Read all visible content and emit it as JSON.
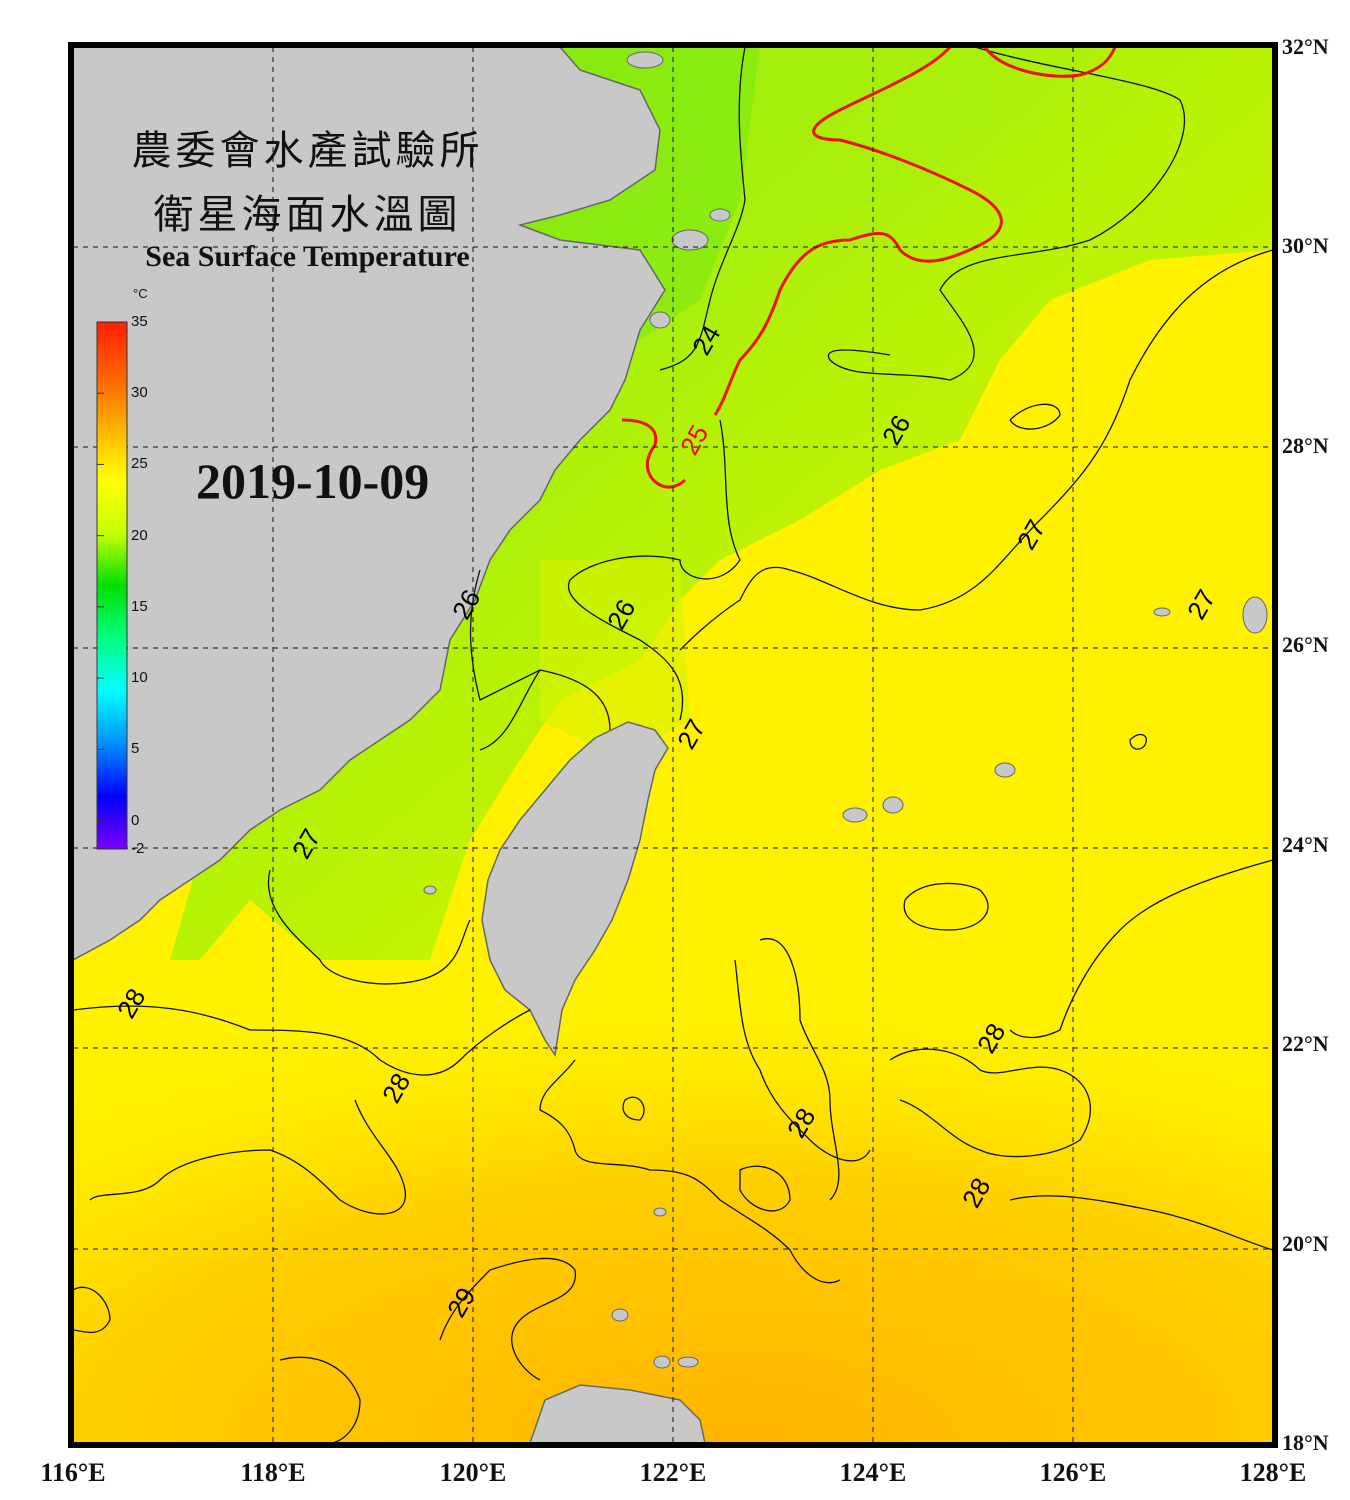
{
  "title": {
    "line1": "農委會水產試驗所",
    "line2": "衛星海面水溫圖",
    "english": "Sea Surface Temperature"
  },
  "date": "2019-10-09",
  "colorbar": {
    "unit": "°C",
    "ticks": [
      "35",
      "30",
      "25",
      "20",
      "15",
      "10",
      "5",
      "0",
      "-2"
    ],
    "min": -2,
    "max": 35,
    "colors": [
      "#7a00ff",
      "#0000ff",
      "#0090ff",
      "#00ffff",
      "#00ff80",
      "#00e000",
      "#c8ff00",
      "#ffff00",
      "#ffb000",
      "#ff6000",
      "#ff2000"
    ]
  },
  "axes": {
    "lat_labels": [
      "32°N",
      "30°N",
      "28°N",
      "26°N",
      "24°N",
      "22°N",
      "20°N",
      "18°N"
    ],
    "lon_labels": [
      "116°E",
      "118°E",
      "120°E",
      "122°E",
      "124°E",
      "126°E",
      "128°E"
    ],
    "lat_range": [
      18,
      32
    ],
    "lon_range": [
      116,
      128
    ]
  },
  "contour_labels": [
    {
      "text": "24",
      "color": "#000000",
      "lon": 122.35,
      "lat": 29.05
    },
    {
      "text": "25",
      "color": "#ff0000",
      "lon": 122.23,
      "lat": 28.05
    },
    {
      "text": "26",
      "color": "#000000",
      "lon": 124.25,
      "lat": 28.15
    },
    {
      "text": "27",
      "color": "#000000",
      "lon": 125.6,
      "lat": 27.1
    },
    {
      "text": "27",
      "color": "#000000",
      "lon": 127.3,
      "lat": 26.4
    },
    {
      "text": "26",
      "color": "#000000",
      "lon": 121.5,
      "lat": 26.3
    },
    {
      "text": "26",
      "color": "#000000",
      "lon": 119.95,
      "lat": 26.4
    },
    {
      "text": "27",
      "color": "#000000",
      "lon": 122.2,
      "lat": 25.1
    },
    {
      "text": "27",
      "color": "#000000",
      "lon": 118.35,
      "lat": 24.0
    },
    {
      "text": "28",
      "color": "#000000",
      "lon": 116.6,
      "lat": 22.4
    },
    {
      "text": "28",
      "color": "#000000",
      "lon": 119.25,
      "lat": 21.55
    },
    {
      "text": "28",
      "color": "#000000",
      "lon": 125.2,
      "lat": 22.05
    },
    {
      "text": "28",
      "color": "#000000",
      "lon": 123.3,
      "lat": 21.2
    },
    {
      "text": "28",
      "color": "#000000",
      "lon": 125.05,
      "lat": 20.5
    },
    {
      "text": "29",
      "color": "#000000",
      "lon": 119.9,
      "lat": 19.4
    }
  ]
}
